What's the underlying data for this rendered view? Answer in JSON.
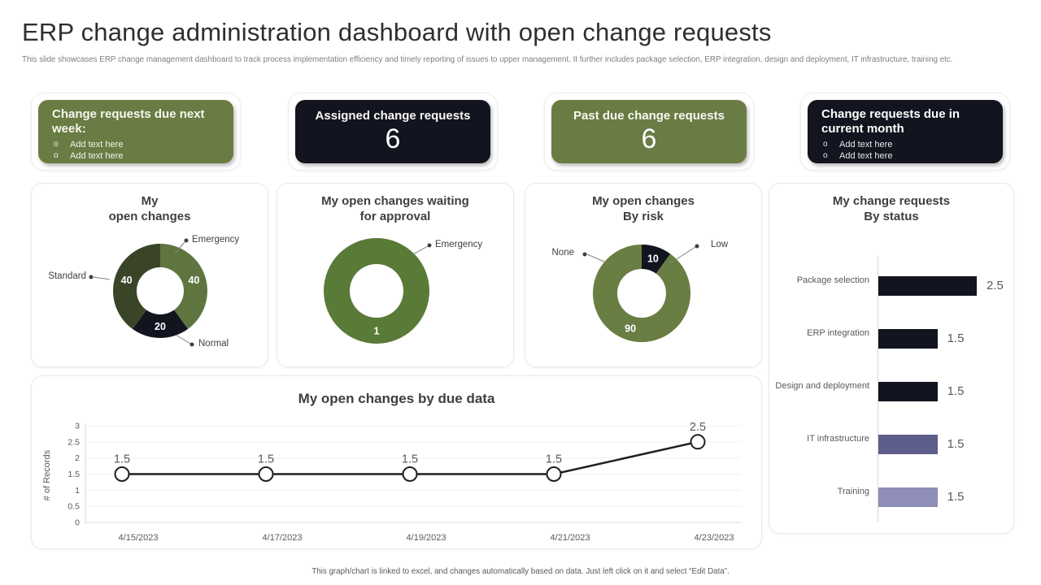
{
  "page": {
    "title": "ERP change administration dashboard with open change requests",
    "subtitle": "This slide showcases ERP change management dashboard to track process implementation efficiency and timely reporting of issues to upper management. It further includes package selection, ERP integration, design and deployment, IT infrastructure, training etc.",
    "footer": "This graph/chart is linked to excel, and changes automatically based on data. Just left click on it and select “Edit Data”."
  },
  "colors": {
    "green": "#697c44",
    "dark": "#12141f",
    "donut_green_light": "#5e7540",
    "donut_green_dark": "#3a4527",
    "donut_green_mid": "#5a7a38",
    "donut_green_risk": "#697e42",
    "purple_mid": "#5c5d8a",
    "purple_light": "#8f8eb8"
  },
  "kpis": [
    {
      "variant": "green",
      "title": "Change requests due next week:",
      "bullets": [
        "Add text here",
        "Add text here"
      ]
    },
    {
      "variant": "dark",
      "title": "Assigned change requests",
      "value": "6"
    },
    {
      "variant": "green",
      "title": "Past due change requests",
      "value": "6"
    },
    {
      "variant": "dark",
      "title": "Change requests due in current month",
      "bullets": [
        "Add text here",
        "Add text here"
      ]
    }
  ],
  "chart_data": [
    {
      "type": "pie",
      "subtype": "donut",
      "title_lines": [
        "My",
        "open changes"
      ],
      "slices": [
        {
          "label": "Emergency",
          "value": 40,
          "color": "#5e7540"
        },
        {
          "label": "Normal",
          "value": 20,
          "color": "#12141f"
        },
        {
          "label": "Standard",
          "value": 40,
          "color": "#3a4527"
        }
      ]
    },
    {
      "type": "pie",
      "subtype": "donut",
      "title_lines": [
        "My open changes waiting",
        "for approval"
      ],
      "slices": [
        {
          "label": "Emergency",
          "value": 1,
          "color": "#5a7a38"
        }
      ]
    },
    {
      "type": "pie",
      "subtype": "donut",
      "title_lines": [
        "My open changes",
        "By risk"
      ],
      "slices": [
        {
          "label": "Low",
          "value": 10,
          "color": "#12141f"
        },
        {
          "label": "None",
          "value": 90,
          "color": "#697e42"
        }
      ]
    },
    {
      "type": "bar",
      "orientation": "horizontal",
      "title_lines": [
        "My change requests",
        "By status"
      ],
      "categories": [
        "Package selection",
        "ERP integration",
        "Design and deployment",
        "IT infrastructure",
        "Training"
      ],
      "values": [
        2.5,
        1.5,
        1.5,
        1.5,
        1.5
      ],
      "bar_colors": [
        "#12141f",
        "#12141f",
        "#12141f",
        "#5c5d8a",
        "#8f8eb8"
      ],
      "xlim": [
        0,
        3
      ],
      "value_labels": [
        "2.5",
        "1.5",
        "1.5",
        "1.5",
        "1.5"
      ]
    },
    {
      "type": "line",
      "title": "My open changes by due data",
      "x": [
        "4/15/2023",
        "4/17/2023",
        "4/19/2023",
        "4/21/2023",
        "4/23/2023"
      ],
      "values": [
        1.5,
        1.5,
        1.5,
        1.5,
        2.5
      ],
      "data_labels": [
        "1.5",
        "1.5",
        "1.5",
        "1.5",
        "2.5"
      ],
      "ylabel": "# of Records",
      "yticks": [
        0,
        0.5,
        1,
        1.5,
        2,
        2.5,
        3
      ],
      "ylim": [
        0,
        3
      ],
      "grid": true,
      "line_color": "#1f1f1f",
      "marker": "open-circle"
    }
  ]
}
